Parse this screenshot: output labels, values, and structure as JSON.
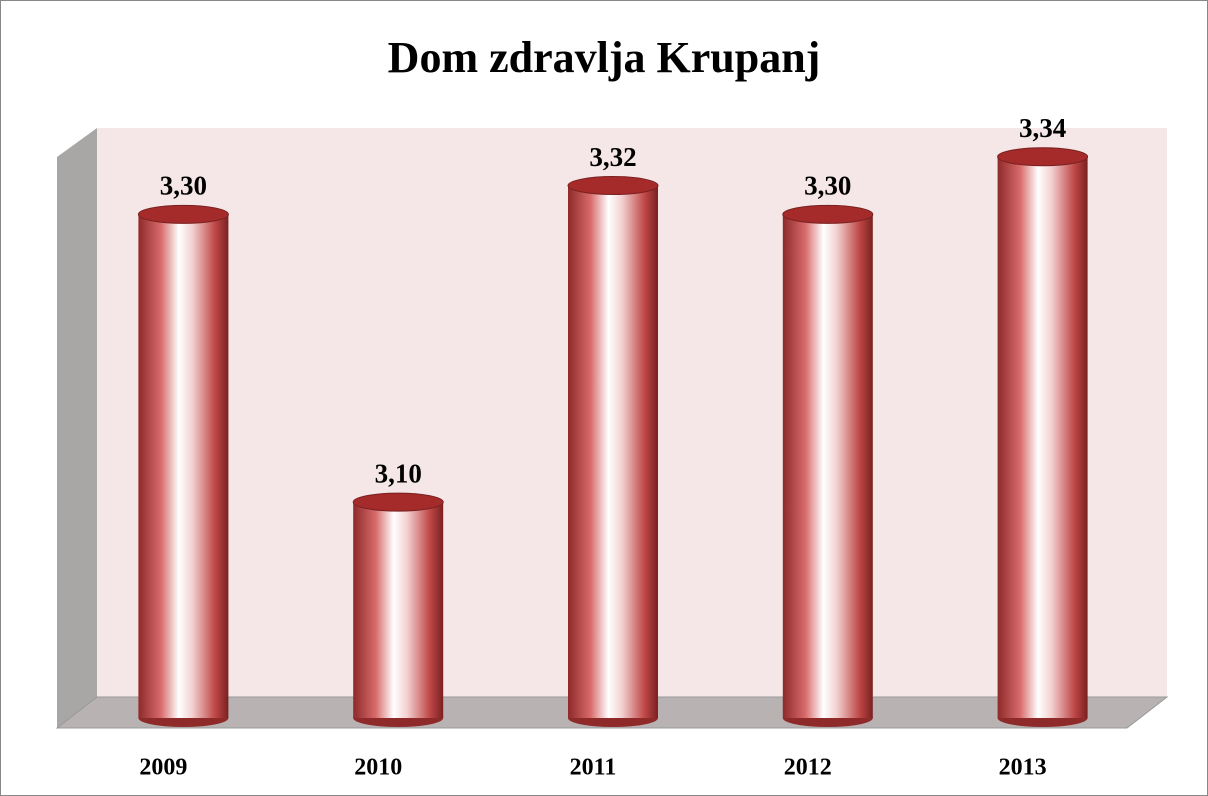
{
  "chart_data": {
    "type": "bar",
    "title": "Dom zdravlja Krupanj",
    "categories": [
      "2009",
      "2010",
      "2011",
      "2012",
      "2013"
    ],
    "values": [
      3.3,
      3.1,
      3.32,
      3.3,
      3.34
    ],
    "value_labels": [
      "3,30",
      "3,10",
      "3,32",
      "3,30",
      "3,34"
    ],
    "color": "#a52a2a",
    "ylim": [
      2.95,
      3.36
    ]
  }
}
